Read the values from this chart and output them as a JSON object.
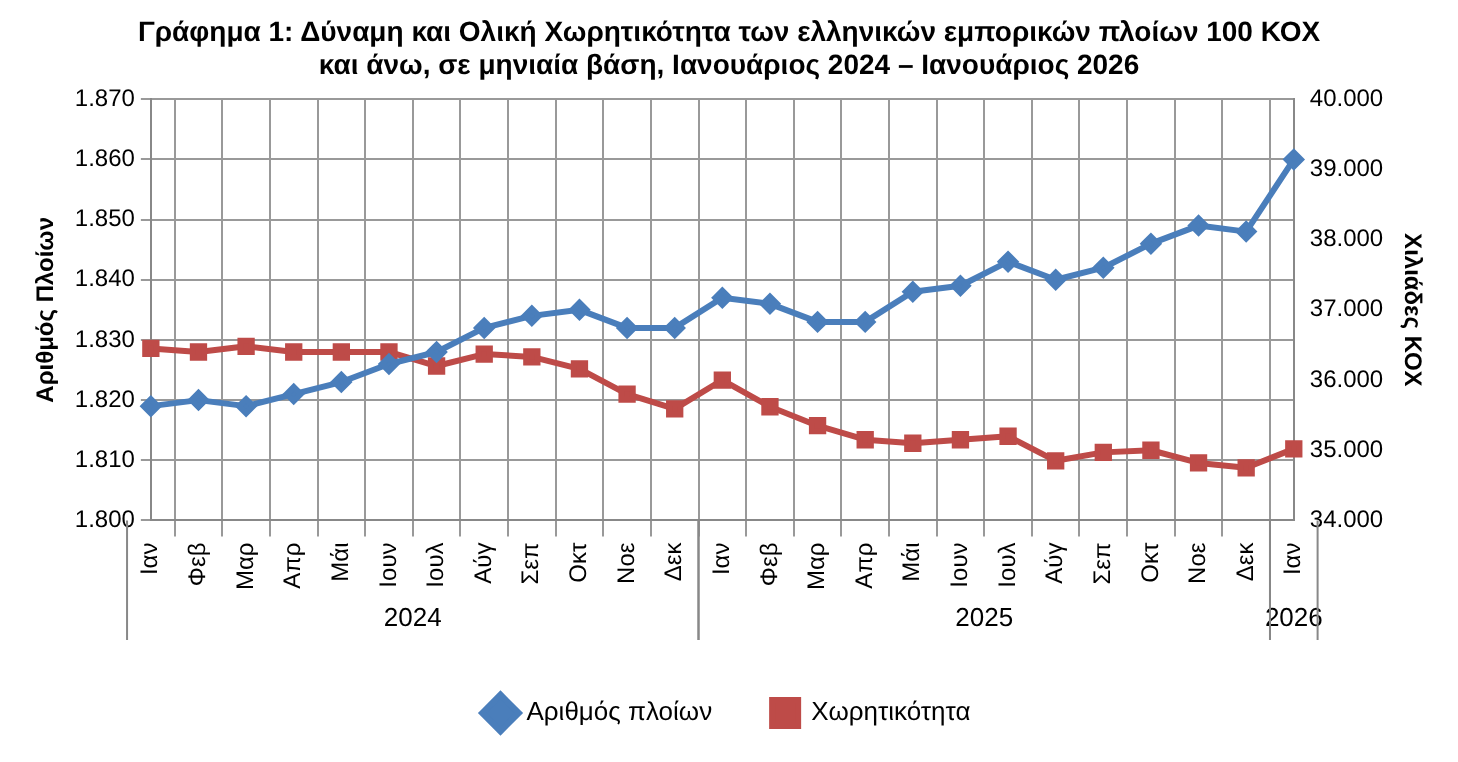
{
  "chart_data": {
    "type": "line",
    "title": "Γράφημα 1: Δύναμη και Ολική Χωρητικότητα των ελληνικών εμπορικών πλοίων 100 ΚΟΧ και άνω, σε μηνιαία βάση, Ιανουάριος 2024 – Ιανουάριος 2026",
    "categories": [
      "Ιαν",
      "Φεβ",
      "Μαρ",
      "Απρ",
      "Μάι",
      "Ιουν",
      "Ιουλ",
      "Αύγ",
      "Σεπ",
      "Οκτ",
      "Νοε",
      "Δεκ",
      "Ιαν",
      "Φεβ",
      "Μαρ",
      "Απρ",
      "Μάι",
      "Ιουν",
      "Ιουλ",
      "Αύγ",
      "Σεπ",
      "Οκτ",
      "Νοε",
      "Δεκ",
      "Ιαν"
    ],
    "series": [
      {
        "name": "Αριθμός πλοίων",
        "color": "#4a7ebb",
        "marker": "diamond",
        "values": [
          1819,
          1820,
          1819,
          1821,
          1823,
          1826,
          1828,
          1832,
          1834,
          1835,
          1832,
          1832,
          1837,
          1836,
          1833,
          1833,
          1838,
          1839,
          1843,
          1840,
          1842,
          1846,
          1849,
          1848,
          1860
        ]
      },
      {
        "name": "Χωρητικότητα",
        "color": "#be4b48",
        "marker": "square",
        "axis": "y2",
        "values": [
          36450,
          36400,
          36480,
          36400,
          36400,
          36400,
          36200,
          36370,
          36330,
          36160,
          35800,
          35590,
          36000,
          35620,
          35350,
          35150,
          35100,
          35150,
          35200,
          34850,
          34970,
          35000,
          34820,
          34750,
          35020
        ]
      }
    ],
    "ylabel": "Αριθμός Πλοίων",
    "y2label": "Χιλιάδες ΚΟΧ",
    "ylim": [
      1800,
      1870
    ],
    "yticks": [
      {
        "value": 1800,
        "label": "1.800"
      },
      {
        "value": 1810,
        "label": "1.810"
      },
      {
        "value": 1820,
        "label": "1.820"
      },
      {
        "value": 1830,
        "label": "1.830"
      },
      {
        "value": 1840,
        "label": "1.840"
      },
      {
        "value": 1850,
        "label": "1.850"
      },
      {
        "value": 1860,
        "label": "1.860"
      },
      {
        "value": 1870,
        "label": "1.870"
      }
    ],
    "y2lim": [
      34000,
      40000
    ],
    "y2ticks": [
      {
        "value": 34000,
        "label": "34.000"
      },
      {
        "value": 35000,
        "label": "35.000"
      },
      {
        "value": 36000,
        "label": "36.000"
      },
      {
        "value": 37000,
        "label": "37.000"
      },
      {
        "value": 38000,
        "label": "38.000"
      },
      {
        "value": 39000,
        "label": "39.000"
      },
      {
        "value": 40000,
        "label": "40.000"
      }
    ],
    "annotations": [
      "2024",
      "2025",
      "2026"
    ],
    "grid": true,
    "legend": "bottom",
    "line_style": "solid"
  }
}
